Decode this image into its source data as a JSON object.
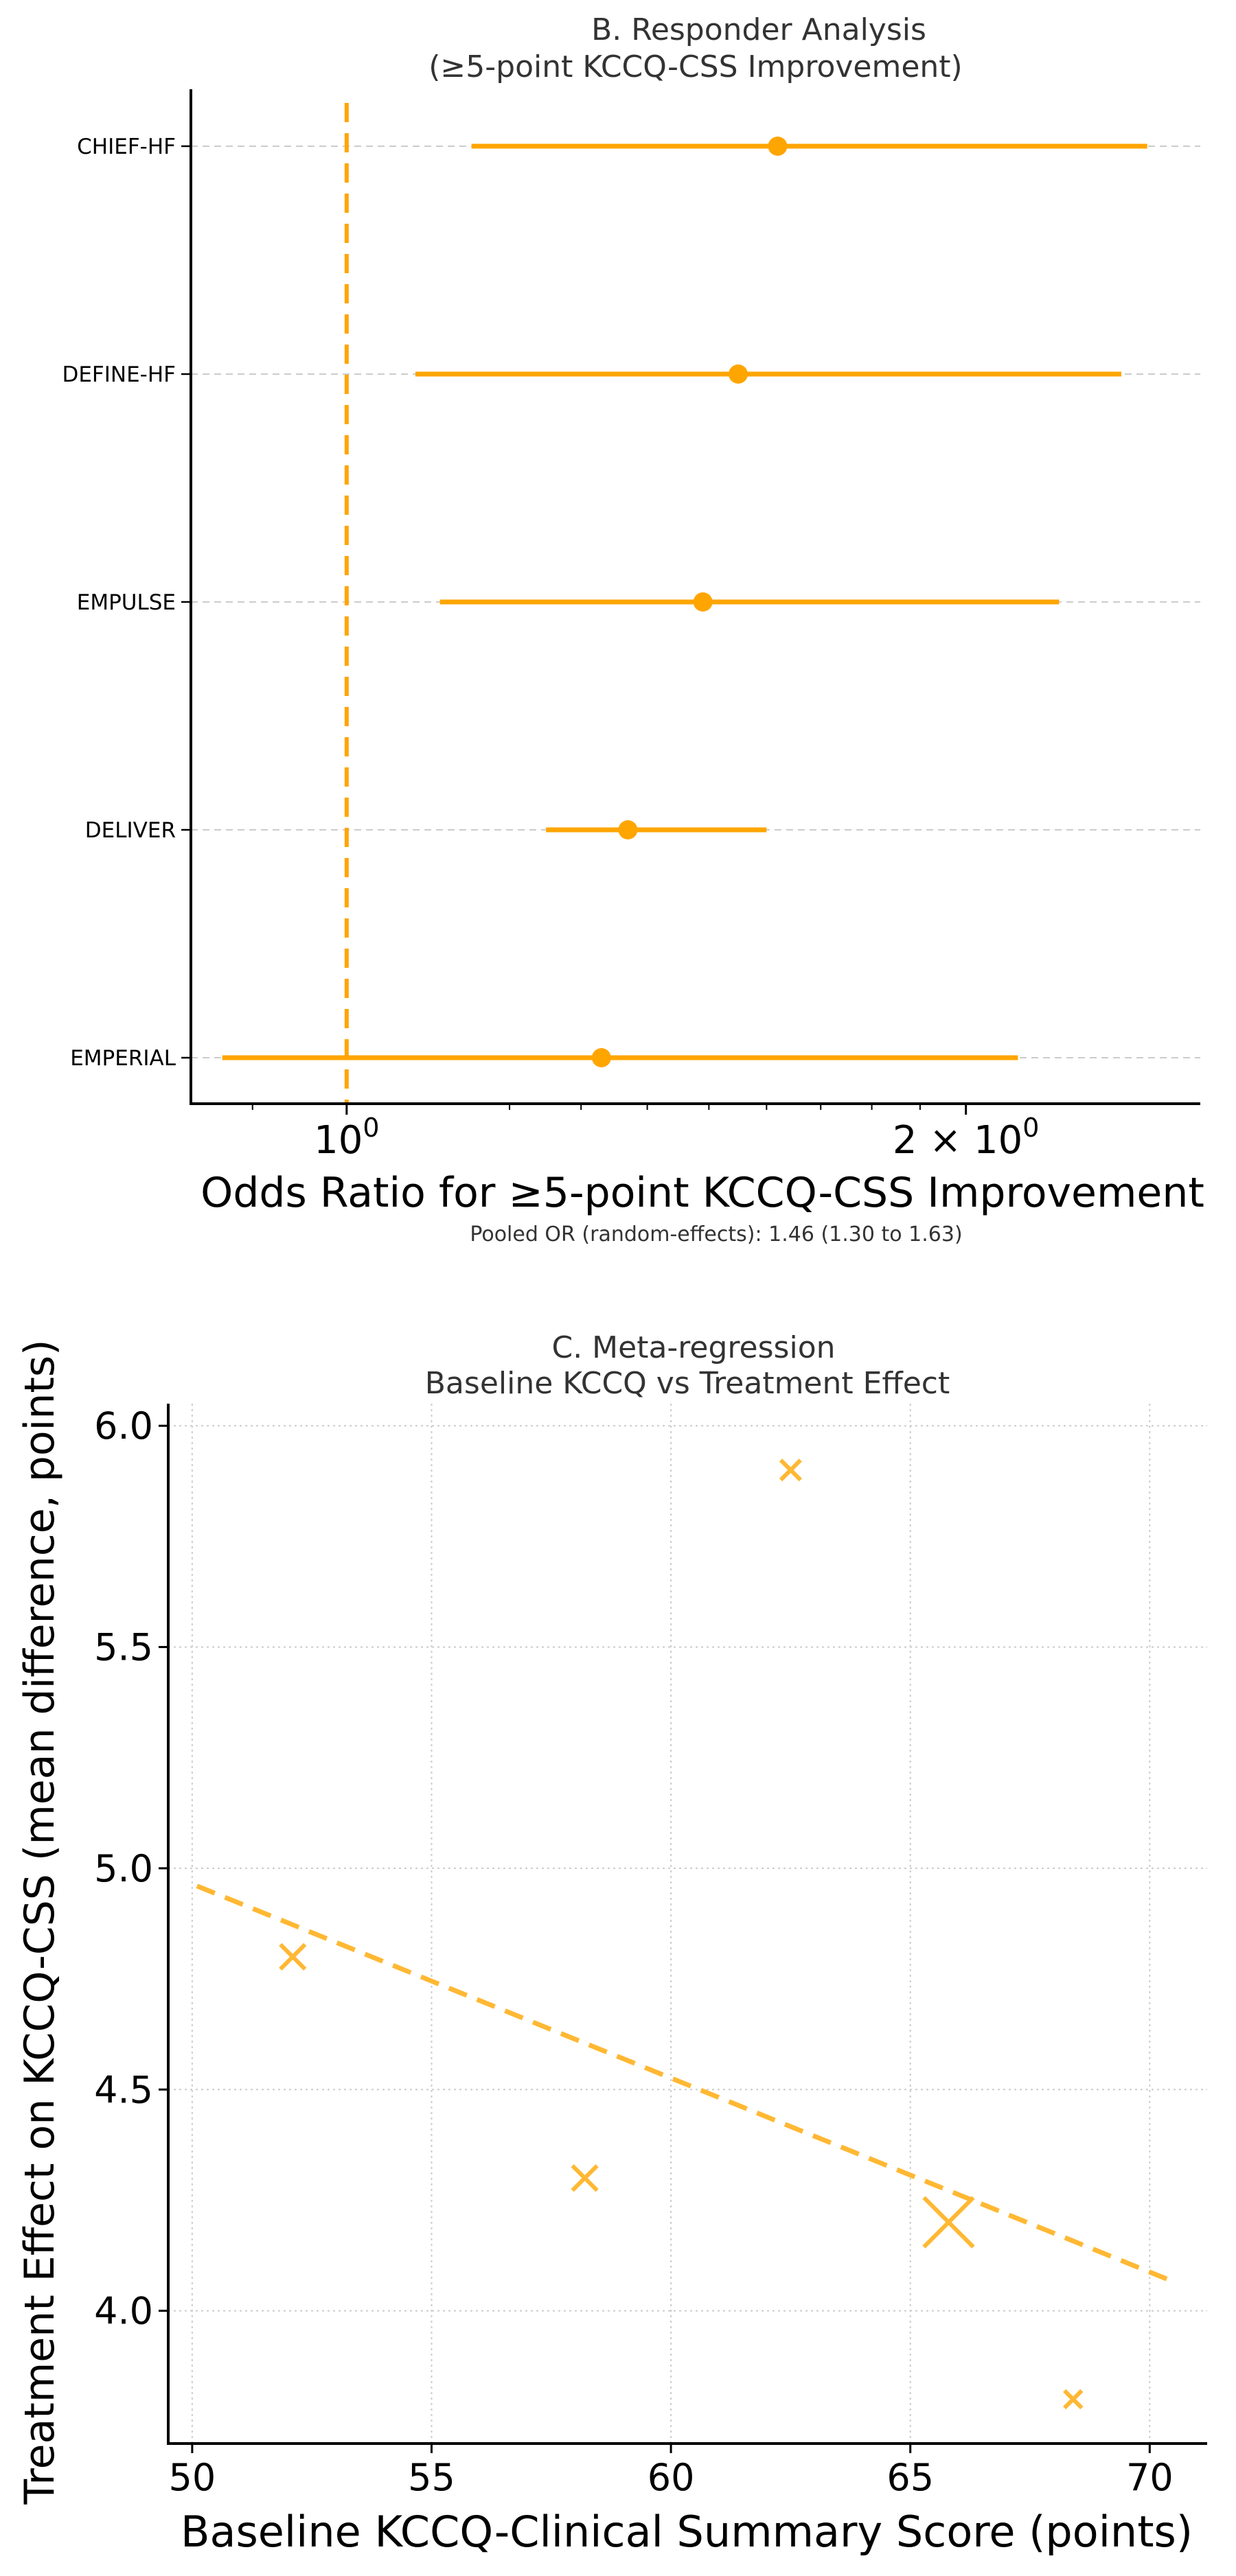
{
  "colors": {
    "forest": "#FFA500",
    "scatter": "#FFB833",
    "grid": "#cccccc",
    "axis": "#000000",
    "title": "#333333"
  },
  "chart_data": [
    {
      "type": "forest",
      "panel": "B",
      "title_line1": "B. Responder Analysis",
      "title_line2": "(≥5-point KCCQ-CSS Improvement)",
      "xlabel": "Odds Ratio for ≥5-point KCCQ-CSS Improvement",
      "xscale": "log",
      "xlim": [
        0.84,
        2.6
      ],
      "xtick_values": [
        1,
        2
      ],
      "xtick_labels": [
        "10",
        "2 × 10"
      ],
      "xtick_exponent": "0",
      "reference_line": 1.0,
      "studies": [
        {
          "name": "CHIEF-HF",
          "or": 1.62,
          "lower": 1.15,
          "upper": 2.45
        },
        {
          "name": "DEFINE-HF",
          "or": 1.55,
          "lower": 1.08,
          "upper": 2.38
        },
        {
          "name": "EMPULSE",
          "or": 1.49,
          "lower": 1.11,
          "upper": 2.22
        },
        {
          "name": "DELIVER",
          "or": 1.37,
          "lower": 1.25,
          "upper": 1.6
        },
        {
          "name": "EMPERIAL",
          "or": 1.33,
          "lower": 0.87,
          "upper": 2.12
        }
      ],
      "footnote": "Pooled OR (random-effects): 1.46 (1.30 to 1.63)"
    },
    {
      "type": "scatter",
      "panel": "C",
      "title_line1": "C. Meta-regression",
      "title_line2": "Baseline KCCQ vs Treatment Effect",
      "xlabel": "Baseline KCCQ-Clinical Summary Score (points)",
      "ylabel": "Treatment Effect on KCCQ-CSS (mean difference, points)",
      "xlim": [
        49.5,
        71.2
      ],
      "ylim": [
        3.7,
        6.05
      ],
      "xticks": [
        50,
        55,
        60,
        65,
        70
      ],
      "yticks": [
        4.0,
        4.5,
        5.0,
        5.5,
        6.0
      ],
      "ytick_labels": [
        "4.0",
        "4.5",
        "5.0",
        "5.5",
        "6.0"
      ],
      "points": [
        {
          "x": 52.1,
          "y": 4.8,
          "weight": 1.0
        },
        {
          "x": 58.2,
          "y": 4.3,
          "weight": 1.0
        },
        {
          "x": 62.5,
          "y": 5.9,
          "weight": 0.8
        },
        {
          "x": 65.8,
          "y": 4.2,
          "weight": 2.0
        },
        {
          "x": 68.4,
          "y": 3.8,
          "weight": 0.7
        }
      ],
      "regression_line": {
        "x": [
          50.1,
          70.4
        ],
        "y": [
          4.96,
          4.07
        ]
      }
    }
  ]
}
